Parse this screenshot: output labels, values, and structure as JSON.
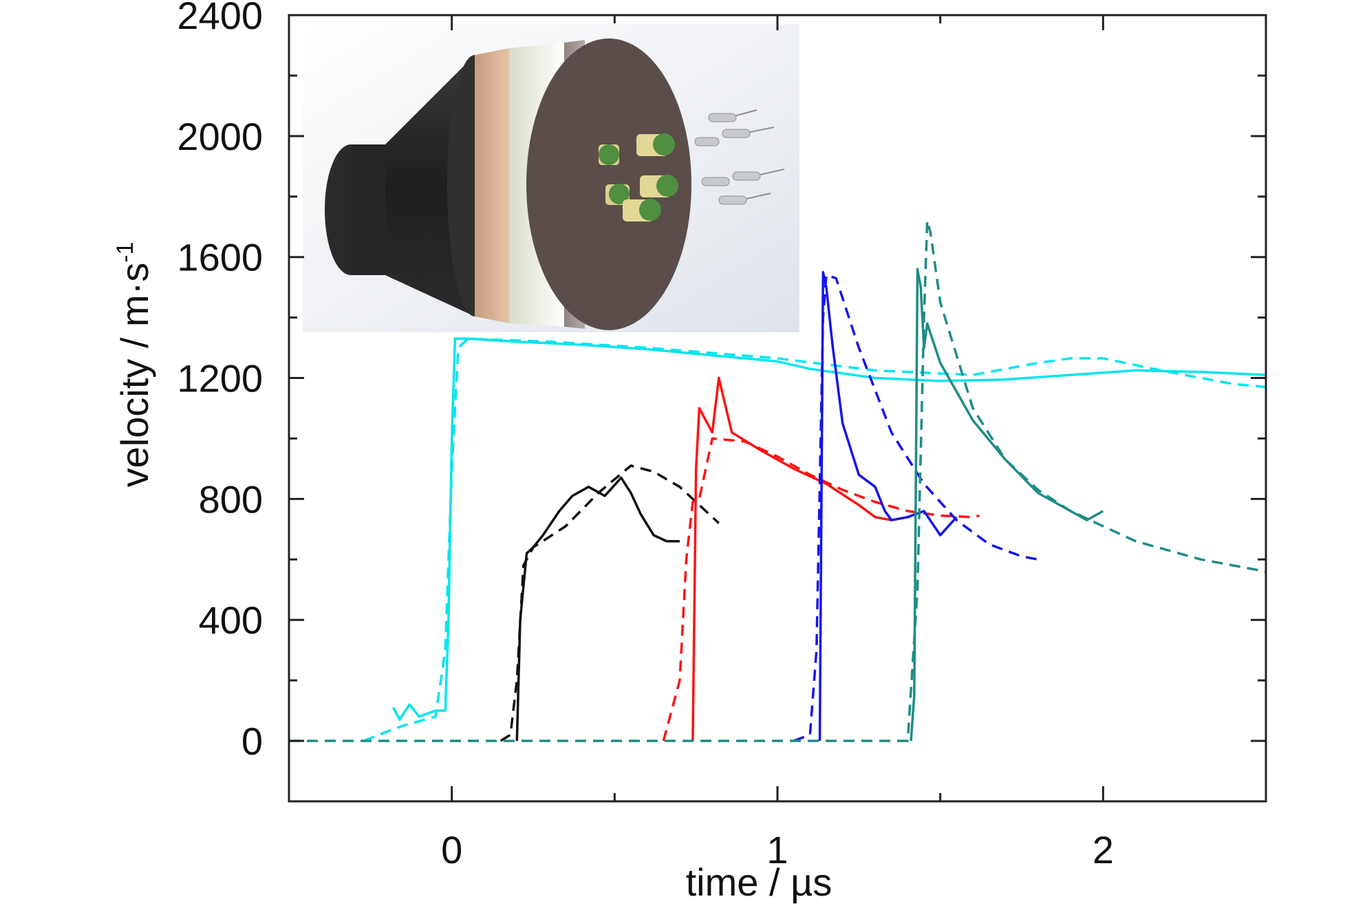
{
  "chart_data": {
    "type": "line",
    "title": "",
    "xlabel": "time / µs",
    "ylabel": "velocity / m·s",
    "ylabel_superscript": "-1",
    "xlim": [
      -0.5,
      2.5
    ],
    "ylim": [
      -200,
      2400
    ],
    "x_ticks": [
      0,
      1,
      2
    ],
    "y_ticks": [
      0,
      400,
      800,
      1200,
      1600,
      2000,
      2400
    ],
    "grid": false,
    "legend": "none",
    "inset": "3D rendering of cylindrical charge assembly with embedded probe inserts",
    "series": [
      {
        "color": "#00e5ee",
        "style": "solid",
        "x": [
          -0.5,
          -0.25,
          -0.18,
          -0.16,
          -0.13,
          -0.1,
          -0.05,
          -0.02,
          -0.01,
          0.0,
          0.01,
          0.05,
          0.2,
          0.4,
          0.6,
          0.8,
          1.0,
          1.1,
          1.3,
          1.5,
          1.7,
          1.9,
          2.1,
          2.3,
          2.5
        ],
        "y": [
          null,
          null,
          110,
          70,
          120,
          80,
          100,
          100,
          400,
          1000,
          1330,
          1330,
          1320,
          1310,
          1295,
          1275,
          1255,
          1230,
          1200,
          1190,
          1195,
          1210,
          1225,
          1220,
          1210
        ]
      },
      {
        "color": "#00e5ee",
        "style": "dashed",
        "x": [
          -0.27,
          -0.2,
          -0.15,
          -0.05,
          -0.02,
          0.0,
          0.02,
          0.05,
          0.3,
          0.6,
          1.0,
          1.3,
          1.6,
          1.8,
          1.9,
          2.0,
          2.2,
          2.4,
          2.5
        ],
        "y": [
          0,
          30,
          50,
          80,
          300,
          900,
          1300,
          1330,
          1320,
          1300,
          1265,
          1225,
          1210,
          1250,
          1265,
          1265,
          1220,
          1180,
          1170
        ]
      },
      {
        "color": "#111111",
        "style": "solid",
        "x": [
          0.2,
          0.21,
          0.23,
          0.25,
          0.28,
          0.33,
          0.37,
          0.42,
          0.47,
          0.52,
          0.55,
          0.58,
          0.62,
          0.66,
          0.7
        ],
        "y": [
          0,
          400,
          620,
          640,
          680,
          760,
          810,
          840,
          810,
          870,
          820,
          750,
          680,
          660,
          660
        ]
      },
      {
        "color": "#111111",
        "style": "dashed",
        "x": [
          0.15,
          0.18,
          0.2,
          0.22,
          0.25,
          0.35,
          0.45,
          0.55,
          0.62,
          0.7,
          0.78,
          0.82
        ],
        "y": [
          0,
          20,
          200,
          580,
          640,
          710,
          820,
          910,
          890,
          840,
          760,
          720
        ]
      },
      {
        "color": "#ff1111",
        "style": "solid",
        "x": [
          0.74,
          0.75,
          0.76,
          0.77,
          0.8,
          0.82,
          0.86,
          0.95,
          1.05,
          1.15,
          1.25,
          1.3,
          1.35,
          1.4
        ],
        "y": [
          0,
          900,
          1100,
          1080,
          1020,
          1200,
          1020,
          960,
          900,
          850,
          780,
          740,
          730,
          740
        ]
      },
      {
        "color": "#ff1111",
        "style": "dashed",
        "x": [
          0.65,
          0.7,
          0.72,
          0.74,
          0.76,
          0.8,
          0.9,
          1.0,
          1.1,
          1.2,
          1.3,
          1.4,
          1.5,
          1.6,
          1.62
        ],
        "y": [
          0,
          200,
          600,
          790,
          800,
          1000,
          990,
          940,
          880,
          830,
          790,
          760,
          745,
          740,
          745
        ]
      },
      {
        "color": "#1414ee",
        "style": "solid",
        "x": [
          1.13,
          1.14,
          1.15,
          1.17,
          1.2,
          1.25,
          1.3,
          1.33,
          1.35,
          1.4,
          1.45,
          1.5,
          1.55
        ],
        "y": [
          0,
          1550,
          1500,
          1300,
          1050,
          880,
          840,
          760,
          730,
          740,
          760,
          680,
          740
        ]
      },
      {
        "color": "#1414ee",
        "style": "dashed",
        "x": [
          1.05,
          1.1,
          1.12,
          1.14,
          1.15,
          1.18,
          1.25,
          1.35,
          1.45,
          1.55,
          1.65,
          1.75,
          1.8
        ],
        "y": [
          0,
          20,
          300,
          1400,
          1540,
          1530,
          1300,
          1020,
          850,
          730,
          650,
          610,
          600
        ]
      },
      {
        "color": "#1e8c86",
        "style": "solid",
        "x": [
          1.41,
          1.42,
          1.43,
          1.44,
          1.45,
          1.46,
          1.5,
          1.6,
          1.7,
          1.8,
          1.9,
          1.95,
          2.0
        ],
        "y": [
          0,
          150,
          1560,
          1500,
          1300,
          1380,
          1250,
          1060,
          930,
          820,
          760,
          730,
          760
        ]
      },
      {
        "color": "#1e8c86",
        "style": "dashed",
        "x": [
          -0.5,
          1.4,
          1.43,
          1.45,
          1.46,
          1.47,
          1.5,
          1.6,
          1.7,
          1.8,
          1.9,
          2.0,
          2.1,
          2.3,
          2.5
        ],
        "y": [
          0,
          0,
          500,
          1400,
          1720,
          1680,
          1450,
          1100,
          930,
          830,
          760,
          710,
          660,
          600,
          560
        ]
      }
    ]
  }
}
